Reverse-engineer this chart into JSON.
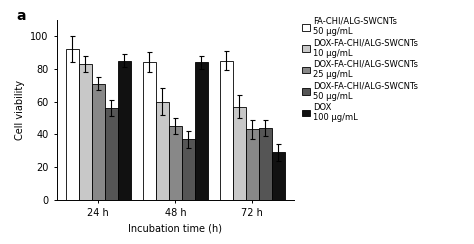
{
  "title_label": "a",
  "groups": [
    "24 h",
    "48 h",
    "72 h"
  ],
  "xlabel": "Incubation time (h)",
  "ylabel": "Cell viability",
  "ylim": [
    0,
    110
  ],
  "yticks": [
    0,
    20,
    40,
    60,
    80,
    100
  ],
  "series": [
    {
      "label": "FA-CHI/ALG-SWCNTs\n50 μg/mL",
      "color": "#ffffff",
      "edgecolor": "#000000",
      "values": [
        92,
        84,
        85
      ],
      "errors": [
        8,
        6,
        6
      ]
    },
    {
      "label": "DOX-FA-CHI/ALG-SWCNTs\n10 μg/mL",
      "color": "#c8c8c8",
      "edgecolor": "#000000",
      "values": [
        83,
        60,
        57
      ],
      "errors": [
        5,
        8,
        7
      ]
    },
    {
      "label": "DOX-FA-CHI/ALG-SWCNTs\n25 μg/mL",
      "color": "#888888",
      "edgecolor": "#000000",
      "values": [
        71,
        45,
        43
      ],
      "errors": [
        4,
        5,
        6
      ]
    },
    {
      "label": "DOX-FA-CHI/ALG-SWCNTs\n50 μg/mL",
      "color": "#555555",
      "edgecolor": "#000000",
      "values": [
        56,
        37,
        44
      ],
      "errors": [
        5,
        5,
        5
      ]
    },
    {
      "label": "DOX\n100 μg/mL",
      "color": "#111111",
      "edgecolor": "#000000",
      "values": [
        85,
        84,
        29
      ],
      "errors": [
        4,
        4,
        5
      ]
    }
  ],
  "bar_width": 0.11,
  "group_centers": [
    0.35,
    1.0,
    1.65
  ],
  "background_color": "#ffffff",
  "fontsize": 7.0,
  "legend_fontsize": 6.0
}
